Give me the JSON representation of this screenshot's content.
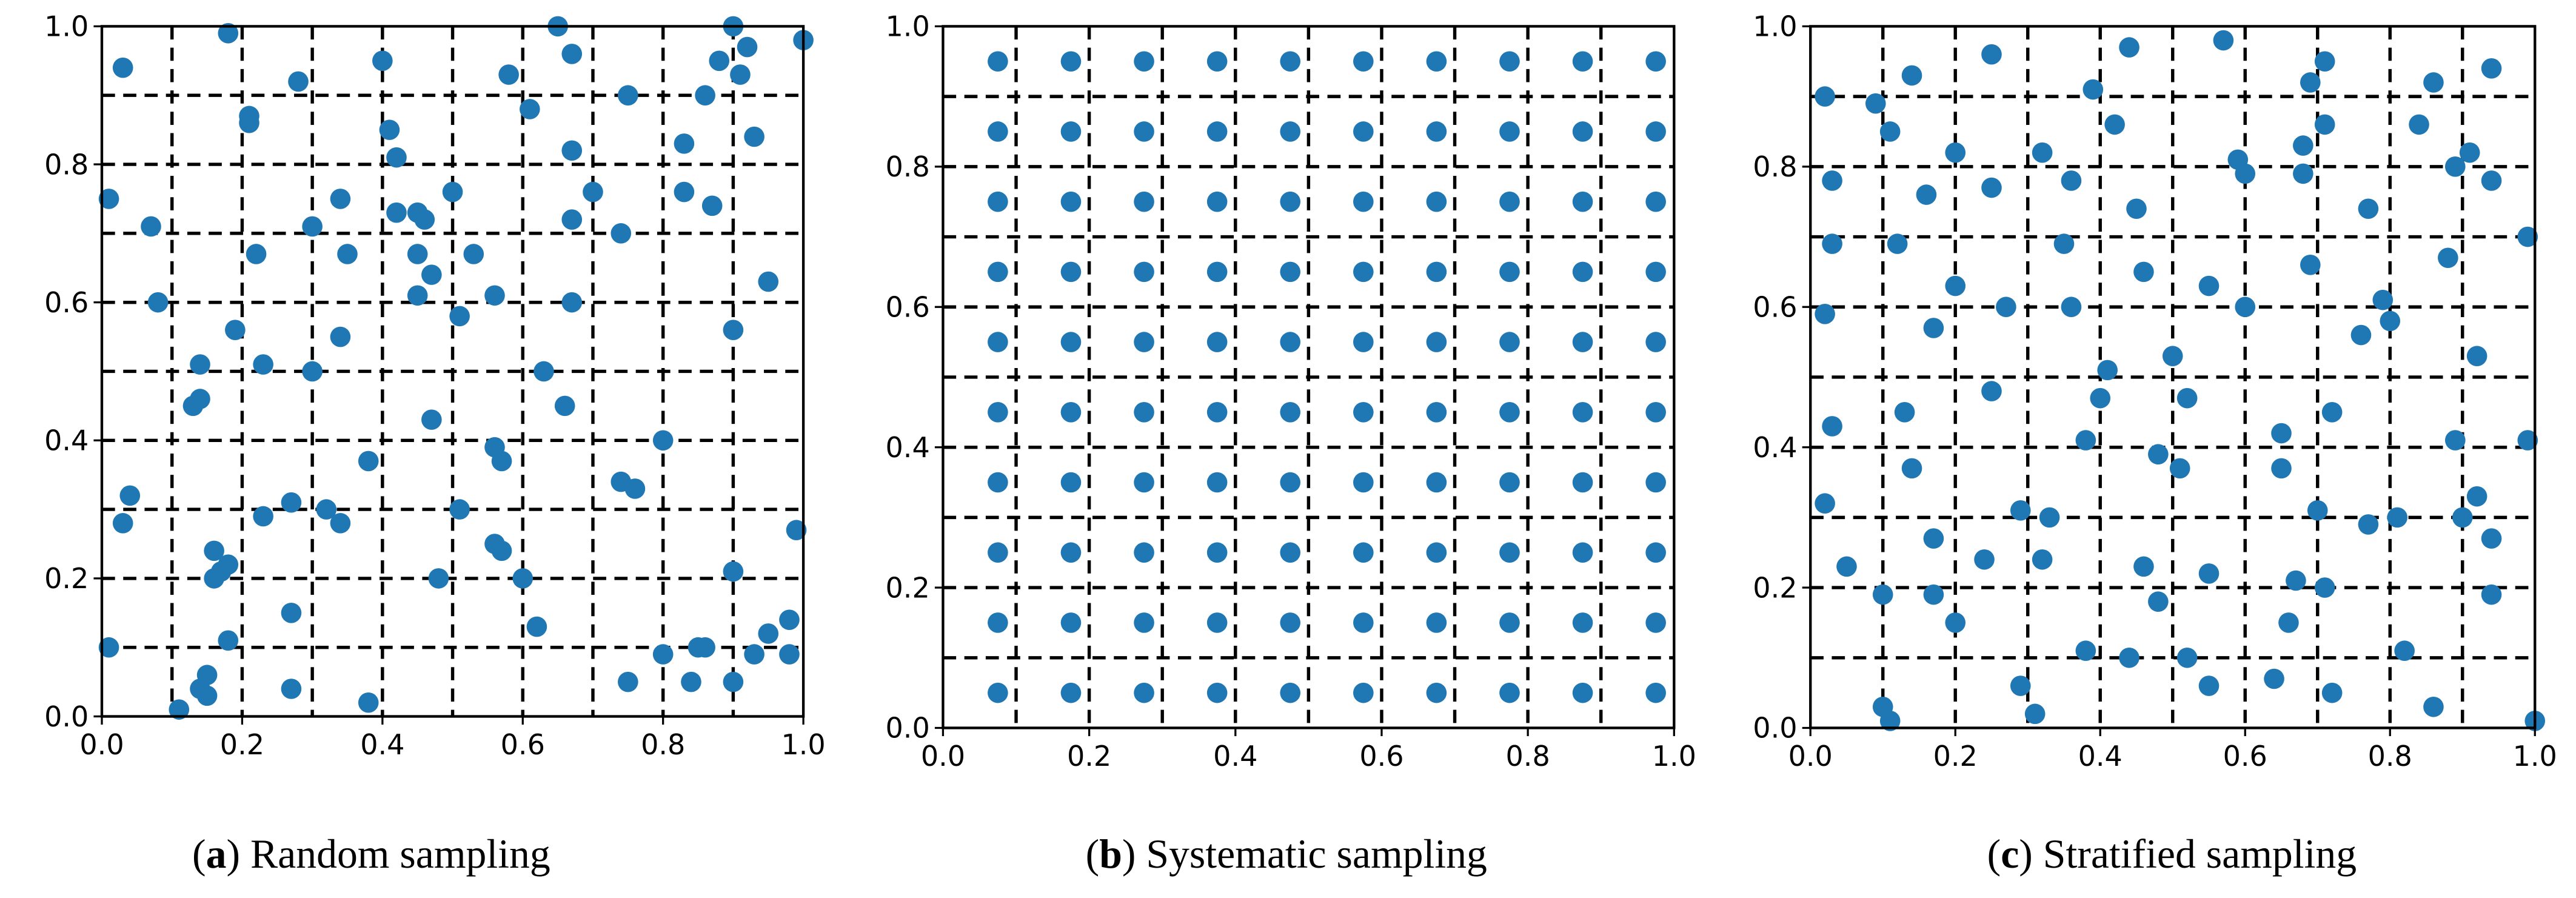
{
  "chart_data": [
    {
      "type": "scatter",
      "caption_label": "a",
      "caption": "Random sampling",
      "color": "#1f77b4",
      "xlim": [
        0,
        1
      ],
      "ylim": [
        0,
        1
      ],
      "xticks": [
        {
          "value": 0,
          "label": "0.0"
        },
        0.2,
        0.4,
        0.6,
        0.8,
        {
          "value": 1,
          "label": "1.0"
        }
      ],
      "yticks": [
        {
          "value": 0,
          "label": "0.0"
        },
        0.2,
        0.4,
        0.6,
        0.8,
        {
          "value": 1,
          "label": "1.0"
        }
      ],
      "grid_lines": [
        0.1,
        0.2,
        0.3,
        0.4,
        0.5,
        0.6,
        0.7,
        0.8,
        0.9
      ],
      "x": [
        0.03,
        0.18,
        0.28,
        0.4,
        0.65,
        0.67,
        0.9,
        0.92,
        1.0,
        0.21,
        0.21,
        0.41,
        0.58,
        0.61,
        0.75,
        0.86,
        0.88,
        0.91,
        0.93,
        0.42,
        0.67,
        0.83,
        0.01,
        0.07,
        0.3,
        0.34,
        0.42,
        0.45,
        0.46,
        0.5,
        0.67,
        0.7,
        0.74,
        0.83,
        0.87,
        0.22,
        0.35,
        0.45,
        0.47,
        0.53,
        0.08,
        0.45,
        0.56,
        0.67,
        0.95,
        0.19,
        0.34,
        0.51,
        0.9,
        0.14,
        0.23,
        0.3,
        0.63,
        0.13,
        0.14,
        0.47,
        0.66,
        0.38,
        0.56,
        0.57,
        0.74,
        0.76,
        0.8,
        0.04,
        0.03,
        0.23,
        0.27,
        0.32,
        0.34,
        0.51,
        0.99,
        0.16,
        0.16,
        0.17,
        0.18,
        0.48,
        0.56,
        0.57,
        0.6,
        0.9,
        0.27,
        0.18,
        0.01,
        0.62,
        0.8,
        0.85,
        0.86,
        0.93,
        0.95,
        0.98,
        0.98,
        0.11,
        0.14,
        0.15,
        0.15,
        0.27,
        0.38,
        0.75,
        0.84,
        0.9
      ],
      "y": [
        0.94,
        0.99,
        0.92,
        0.95,
        1.0,
        0.96,
        1.0,
        0.97,
        0.98,
        0.87,
        0.86,
        0.85,
        0.93,
        0.88,
        0.9,
        0.9,
        0.95,
        0.93,
        0.84,
        0.81,
        0.82,
        0.83,
        0.75,
        0.71,
        0.71,
        0.75,
        0.73,
        0.73,
        0.72,
        0.76,
        0.72,
        0.76,
        0.7,
        0.76,
        0.74,
        0.67,
        0.67,
        0.67,
        0.64,
        0.67,
        0.6,
        0.61,
        0.61,
        0.6,
        0.63,
        0.56,
        0.55,
        0.58,
        0.56,
        0.51,
        0.51,
        0.5,
        0.5,
        0.45,
        0.46,
        0.43,
        0.45,
        0.37,
        0.39,
        0.37,
        0.34,
        0.33,
        0.4,
        0.32,
        0.28,
        0.29,
        0.31,
        0.3,
        0.28,
        0.3,
        0.27,
        0.24,
        0.2,
        0.21,
        0.22,
        0.2,
        0.25,
        0.24,
        0.2,
        0.21,
        0.15,
        0.11,
        0.1,
        0.13,
        0.09,
        0.1,
        0.1,
        0.09,
        0.12,
        0.14,
        0.09,
        0.01,
        0.04,
        0.06,
        0.03,
        0.04,
        0.02,
        0.05,
        0.05,
        0.05
      ]
    },
    {
      "type": "scatter",
      "caption_label": "b",
      "caption": "Systematic sampling",
      "color": "#1f77b4",
      "xlim": [
        0,
        1
      ],
      "ylim": [
        0,
        1
      ],
      "xticks": [
        {
          "value": 0,
          "label": "0.0"
        },
        0.2,
        0.4,
        0.6,
        0.8,
        {
          "value": 1,
          "label": "1.0"
        }
      ],
      "yticks": [
        {
          "value": 0,
          "label": "0.0"
        },
        0.2,
        0.4,
        0.6,
        0.8,
        {
          "value": 1,
          "label": "1.0"
        }
      ],
      "grid_lines": [
        0.1,
        0.2,
        0.3,
        0.4,
        0.5,
        0.6,
        0.7,
        0.8,
        0.9
      ],
      "x": [
        0.075,
        0.175,
        0.275,
        0.375,
        0.475,
        0.575,
        0.675,
        0.775,
        0.875,
        0.975,
        0.075,
        0.175,
        0.275,
        0.375,
        0.475,
        0.575,
        0.675,
        0.775,
        0.875,
        0.975,
        0.075,
        0.175,
        0.275,
        0.375,
        0.475,
        0.575,
        0.675,
        0.775,
        0.875,
        0.975,
        0.075,
        0.175,
        0.275,
        0.375,
        0.475,
        0.575,
        0.675,
        0.775,
        0.875,
        0.975,
        0.075,
        0.175,
        0.275,
        0.375,
        0.475,
        0.575,
        0.675,
        0.775,
        0.875,
        0.975,
        0.075,
        0.175,
        0.275,
        0.375,
        0.475,
        0.575,
        0.675,
        0.775,
        0.875,
        0.975,
        0.075,
        0.175,
        0.275,
        0.375,
        0.475,
        0.575,
        0.675,
        0.775,
        0.875,
        0.975,
        0.075,
        0.175,
        0.275,
        0.375,
        0.475,
        0.575,
        0.675,
        0.775,
        0.875,
        0.975,
        0.075,
        0.175,
        0.275,
        0.375,
        0.475,
        0.575,
        0.675,
        0.775,
        0.875,
        0.975,
        0.075,
        0.175,
        0.275,
        0.375,
        0.475,
        0.575,
        0.675,
        0.775,
        0.875,
        0.975
      ],
      "y": [
        0.05,
        0.05,
        0.05,
        0.05,
        0.05,
        0.05,
        0.05,
        0.05,
        0.05,
        0.05,
        0.15,
        0.15,
        0.15,
        0.15,
        0.15,
        0.15,
        0.15,
        0.15,
        0.15,
        0.15,
        0.25,
        0.25,
        0.25,
        0.25,
        0.25,
        0.25,
        0.25,
        0.25,
        0.25,
        0.25,
        0.35,
        0.35,
        0.35,
        0.35,
        0.35,
        0.35,
        0.35,
        0.35,
        0.35,
        0.35,
        0.45,
        0.45,
        0.45,
        0.45,
        0.45,
        0.45,
        0.45,
        0.45,
        0.45,
        0.45,
        0.55,
        0.55,
        0.55,
        0.55,
        0.55,
        0.55,
        0.55,
        0.55,
        0.55,
        0.55,
        0.65,
        0.65,
        0.65,
        0.65,
        0.65,
        0.65,
        0.65,
        0.65,
        0.65,
        0.65,
        0.75,
        0.75,
        0.75,
        0.75,
        0.75,
        0.75,
        0.75,
        0.75,
        0.75,
        0.75,
        0.85,
        0.85,
        0.85,
        0.85,
        0.85,
        0.85,
        0.85,
        0.85,
        0.85,
        0.85,
        0.95,
        0.95,
        0.95,
        0.95,
        0.95,
        0.95,
        0.95,
        0.95,
        0.95,
        0.95
      ]
    },
    {
      "type": "scatter",
      "caption_label": "c",
      "caption": "Stratified sampling",
      "color": "#1f77b4",
      "xlim": [
        0,
        1
      ],
      "ylim": [
        0,
        1
      ],
      "xticks": [
        {
          "value": 0,
          "label": "0.0"
        },
        0.2,
        0.4,
        0.6,
        0.8,
        {
          "value": 1,
          "label": "1.0"
        }
      ],
      "yticks": [
        {
          "value": 0,
          "label": "0.0"
        },
        0.2,
        0.4,
        0.6,
        0.8,
        {
          "value": 1,
          "label": "1.0"
        }
      ],
      "grid_lines": [
        0.1,
        0.2,
        0.3,
        0.4,
        0.5,
        0.6,
        0.7,
        0.8,
        0.9
      ],
      "x": [
        0.02,
        0.09,
        0.14,
        0.25,
        0.39,
        0.44,
        0.57,
        0.69,
        0.71,
        0.86,
        0.94,
        0.11,
        0.2,
        0.32,
        0.42,
        0.59,
        0.71,
        0.84,
        0.91,
        0.03,
        0.16,
        0.25,
        0.36,
        0.45,
        0.6,
        0.68,
        0.68,
        0.77,
        0.89,
        0.94,
        0.03,
        0.12,
        0.27,
        0.35,
        0.46,
        0.69,
        0.88,
        0.99,
        0.02,
        0.2,
        0.17,
        0.36,
        0.5,
        0.55,
        0.6,
        0.76,
        0.79,
        0.8,
        0.92,
        0.03,
        0.13,
        0.25,
        0.4,
        0.41,
        0.38,
        0.52,
        0.65,
        0.72,
        0.89,
        0.99,
        0.02,
        0.14,
        0.29,
        0.33,
        0.48,
        0.51,
        0.65,
        0.7,
        0.81,
        0.9,
        0.92,
        0.05,
        0.17,
        0.24,
        0.32,
        0.46,
        0.55,
        0.67,
        0.71,
        0.77,
        0.94,
        0.1,
        0.17,
        0.2,
        0.48,
        0.66,
        0.82,
        0.94,
        0.1,
        0.11,
        0.29,
        0.31,
        0.38,
        0.44,
        0.52,
        0.55,
        0.64,
        0.72,
        0.86,
        1.0
      ],
      "y": [
        0.9,
        0.89,
        0.93,
        0.96,
        0.91,
        0.97,
        0.98,
        0.92,
        0.95,
        0.92,
        0.94,
        0.85,
        0.82,
        0.82,
        0.86,
        0.81,
        0.86,
        0.86,
        0.82,
        0.78,
        0.76,
        0.77,
        0.78,
        0.74,
        0.79,
        0.83,
        0.79,
        0.74,
        0.8,
        0.78,
        0.69,
        0.69,
        0.6,
        0.69,
        0.65,
        0.66,
        0.67,
        0.7,
        0.59,
        0.63,
        0.57,
        0.6,
        0.53,
        0.63,
        0.6,
        0.56,
        0.61,
        0.58,
        0.53,
        0.43,
        0.45,
        0.48,
        0.47,
        0.51,
        0.41,
        0.47,
        0.42,
        0.45,
        0.41,
        0.41,
        0.32,
        0.37,
        0.31,
        0.3,
        0.39,
        0.37,
        0.37,
        0.31,
        0.3,
        0.3,
        0.33,
        0.23,
        0.27,
        0.24,
        0.24,
        0.23,
        0.22,
        0.21,
        0.2,
        0.29,
        0.27,
        0.19,
        0.19,
        0.15,
        0.18,
        0.15,
        0.11,
        0.19,
        0.03,
        0.01,
        0.06,
        0.02,
        0.11,
        0.1,
        0.1,
        0.06,
        0.07,
        0.05,
        0.03,
        0.01
      ]
    }
  ]
}
